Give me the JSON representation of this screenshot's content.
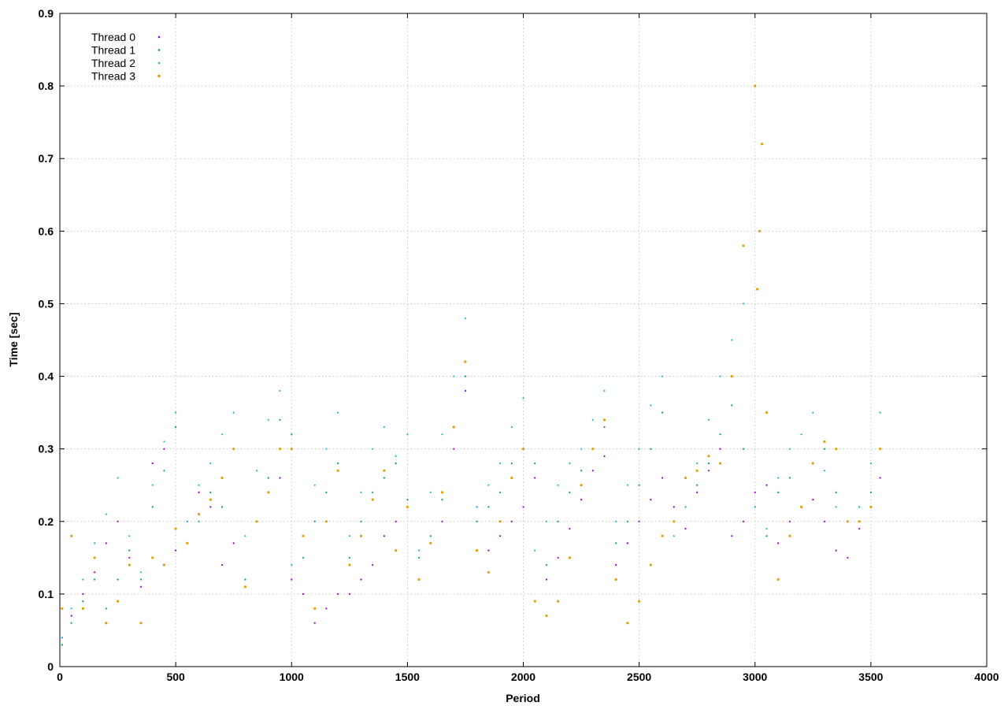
{
  "chart_data": {
    "type": "scatter",
    "title": "",
    "xlabel": "Period",
    "ylabel": "Time [sec]",
    "xlim": [
      0,
      4000
    ],
    "ylim": [
      0,
      0.9
    ],
    "xticks": [
      0,
      500,
      1000,
      1500,
      2000,
      2500,
      3000,
      3500,
      4000
    ],
    "yticks": [
      0,
      0.1,
      0.2,
      0.3,
      0.4,
      0.5,
      0.6,
      0.7,
      0.8,
      0.9
    ],
    "xtick_labels": [
      "0",
      "500",
      "1000",
      "1500",
      "2000",
      "2500",
      "3000",
      "3500",
      "4000"
    ],
    "ytick_labels": [
      "0",
      "0.1",
      "0.2",
      "0.3",
      "0.4",
      "0.5",
      "0.6",
      "0.7",
      "0.8",
      "0.9"
    ],
    "grid": true,
    "legend_position": "top-left",
    "series": [
      {
        "name": "Thread 0",
        "color": "#9400d3",
        "x": [
          10,
          50,
          100,
          150,
          200,
          250,
          300,
          350,
          400,
          450,
          500,
          550,
          600,
          650,
          700,
          750,
          800,
          850,
          900,
          950,
          1000,
          1050,
          1100,
          1150,
          1200,
          1250,
          1300,
          1350,
          1400,
          1450,
          1500,
          1550,
          1600,
          1650,
          1700,
          1750,
          1800,
          1850,
          1900,
          1950,
          2000,
          2050,
          2100,
          2150,
          2200,
          2250,
          2300,
          2350,
          2400,
          2450,
          2500,
          2550,
          2600,
          2650,
          2700,
          2750,
          2800,
          2850,
          2900,
          2950,
          3000,
          3050,
          3100,
          3150,
          3200,
          3250,
          3300,
          3350,
          3400,
          3450,
          3500,
          3540
        ],
        "y": [
          0.04,
          0.07,
          0.1,
          0.13,
          0.17,
          0.2,
          0.15,
          0.11,
          0.28,
          0.3,
          0.16,
          0.2,
          0.24,
          0.22,
          0.14,
          0.17,
          0.11,
          0.2,
          0.24,
          0.26,
          0.12,
          0.1,
          0.06,
          0.08,
          0.1,
          0.1,
          0.12,
          0.14,
          0.18,
          0.2,
          0.22,
          0.12,
          0.17,
          0.2,
          0.3,
          0.38,
          0.22,
          0.16,
          0.18,
          0.2,
          0.22,
          0.26,
          0.12,
          0.15,
          0.19,
          0.23,
          0.27,
          0.29,
          0.14,
          0.17,
          0.2,
          0.23,
          0.26,
          0.22,
          0.19,
          0.24,
          0.27,
          0.3,
          0.18,
          0.2,
          0.24,
          0.25,
          0.17,
          0.2,
          0.22,
          0.23,
          0.2,
          0.16,
          0.15,
          0.19,
          0.22,
          0.26
        ]
      },
      {
        "name": "Thread 1",
        "color": "#009e73",
        "x": [
          10,
          50,
          100,
          150,
          200,
          250,
          300,
          350,
          400,
          450,
          500,
          550,
          600,
          650,
          700,
          750,
          800,
          850,
          900,
          950,
          1000,
          1050,
          1100,
          1150,
          1200,
          1250,
          1300,
          1350,
          1400,
          1450,
          1500,
          1550,
          1600,
          1650,
          1700,
          1750,
          1800,
          1850,
          1900,
          1950,
          2000,
          2050,
          2100,
          2150,
          2200,
          2250,
          2300,
          2350,
          2400,
          2450,
          2500,
          2550,
          2600,
          2650,
          2700,
          2750,
          2800,
          2850,
          2900,
          2950,
          3000,
          3050,
          3100,
          3150,
          3200,
          3250,
          3300,
          3350,
          3400,
          3450,
          3500,
          3540
        ],
        "y": [
          0.03,
          0.06,
          0.09,
          0.12,
          0.08,
          0.12,
          0.16,
          0.12,
          0.22,
          0.27,
          0.33,
          0.17,
          0.2,
          0.24,
          0.22,
          0.3,
          0.12,
          0.2,
          0.26,
          0.34,
          0.32,
          0.15,
          0.2,
          0.24,
          0.28,
          0.15,
          0.2,
          0.24,
          0.26,
          0.28,
          0.23,
          0.15,
          0.18,
          0.23,
          0.33,
          0.4,
          0.2,
          0.22,
          0.24,
          0.28,
          0.3,
          0.28,
          0.14,
          0.2,
          0.24,
          0.27,
          0.3,
          0.33,
          0.17,
          0.2,
          0.25,
          0.3,
          0.35,
          0.2,
          0.22,
          0.25,
          0.28,
          0.32,
          0.36,
          0.3,
          0.22,
          0.18,
          0.24,
          0.26,
          0.22,
          0.28,
          0.3,
          0.24,
          0.2,
          0.22,
          0.24,
          0.3
        ]
      },
      {
        "name": "Thread 2",
        "color": "#17becf",
        "x": [
          10,
          50,
          100,
          150,
          200,
          250,
          300,
          350,
          400,
          450,
          500,
          550,
          600,
          650,
          700,
          750,
          800,
          850,
          900,
          950,
          1000,
          1050,
          1100,
          1150,
          1200,
          1250,
          1300,
          1350,
          1400,
          1450,
          1500,
          1550,
          1600,
          1650,
          1700,
          1750,
          1800,
          1850,
          1900,
          1950,
          2000,
          2050,
          2100,
          2150,
          2200,
          2250,
          2300,
          2350,
          2400,
          2450,
          2500,
          2550,
          2600,
          2650,
          2700,
          2750,
          2800,
          2850,
          2900,
          2950,
          3000,
          3050,
          3100,
          3150,
          3200,
          3250,
          3300,
          3350,
          3400,
          3450,
          3500,
          3540
        ],
        "y": [
          0.04,
          0.08,
          0.12,
          0.17,
          0.21,
          0.26,
          0.18,
          0.13,
          0.25,
          0.31,
          0.35,
          0.2,
          0.25,
          0.28,
          0.32,
          0.35,
          0.18,
          0.27,
          0.34,
          0.38,
          0.14,
          0.18,
          0.25,
          0.3,
          0.35,
          0.18,
          0.24,
          0.3,
          0.33,
          0.29,
          0.32,
          0.16,
          0.24,
          0.32,
          0.4,
          0.48,
          0.22,
          0.25,
          0.28,
          0.33,
          0.37,
          0.16,
          0.2,
          0.25,
          0.28,
          0.3,
          0.34,
          0.38,
          0.2,
          0.25,
          0.3,
          0.36,
          0.4,
          0.18,
          0.22,
          0.28,
          0.34,
          0.4,
          0.45,
          0.5,
          0.22,
          0.19,
          0.26,
          0.3,
          0.32,
          0.35,
          0.27,
          0.22,
          0.2,
          0.22,
          0.28,
          0.35
        ]
      },
      {
        "name": "Thread 3",
        "color": "#e69f00",
        "x": [
          10,
          50,
          100,
          150,
          200,
          250,
          300,
          350,
          400,
          450,
          500,
          550,
          600,
          650,
          700,
          750,
          800,
          850,
          900,
          950,
          1000,
          1050,
          1100,
          1150,
          1200,
          1250,
          1300,
          1350,
          1400,
          1450,
          1500,
          1550,
          1600,
          1650,
          1700,
          1750,
          1800,
          1850,
          1900,
          1950,
          2000,
          2050,
          2100,
          2150,
          2200,
          2250,
          2300,
          2350,
          2400,
          2450,
          2500,
          2550,
          2600,
          2650,
          2700,
          2750,
          2800,
          2850,
          2900,
          2950,
          3000,
          3010,
          3020,
          3030,
          3050,
          3100,
          3150,
          3200,
          3250,
          3300,
          3350,
          3400,
          3450,
          3500,
          3540
        ],
        "y": [
          0.08,
          0.18,
          0.08,
          0.15,
          0.06,
          0.09,
          0.14,
          0.06,
          0.15,
          0.14,
          0.19,
          0.17,
          0.21,
          0.23,
          0.26,
          0.3,
          0.11,
          0.2,
          0.24,
          0.3,
          0.3,
          0.18,
          0.08,
          0.2,
          0.27,
          0.14,
          0.18,
          0.23,
          0.27,
          0.16,
          0.22,
          0.12,
          0.17,
          0.24,
          0.33,
          0.42,
          0.16,
          0.13,
          0.2,
          0.26,
          0.3,
          0.09,
          0.07,
          0.09,
          0.15,
          0.25,
          0.3,
          0.34,
          0.12,
          0.06,
          0.09,
          0.14,
          0.18,
          0.2,
          0.26,
          0.27,
          0.29,
          0.28,
          0.4,
          0.58,
          0.8,
          0.52,
          0.6,
          0.72,
          0.35,
          0.12,
          0.18,
          0.22,
          0.28,
          0.31,
          0.3,
          0.2,
          0.2,
          0.22,
          0.3
        ]
      }
    ]
  }
}
